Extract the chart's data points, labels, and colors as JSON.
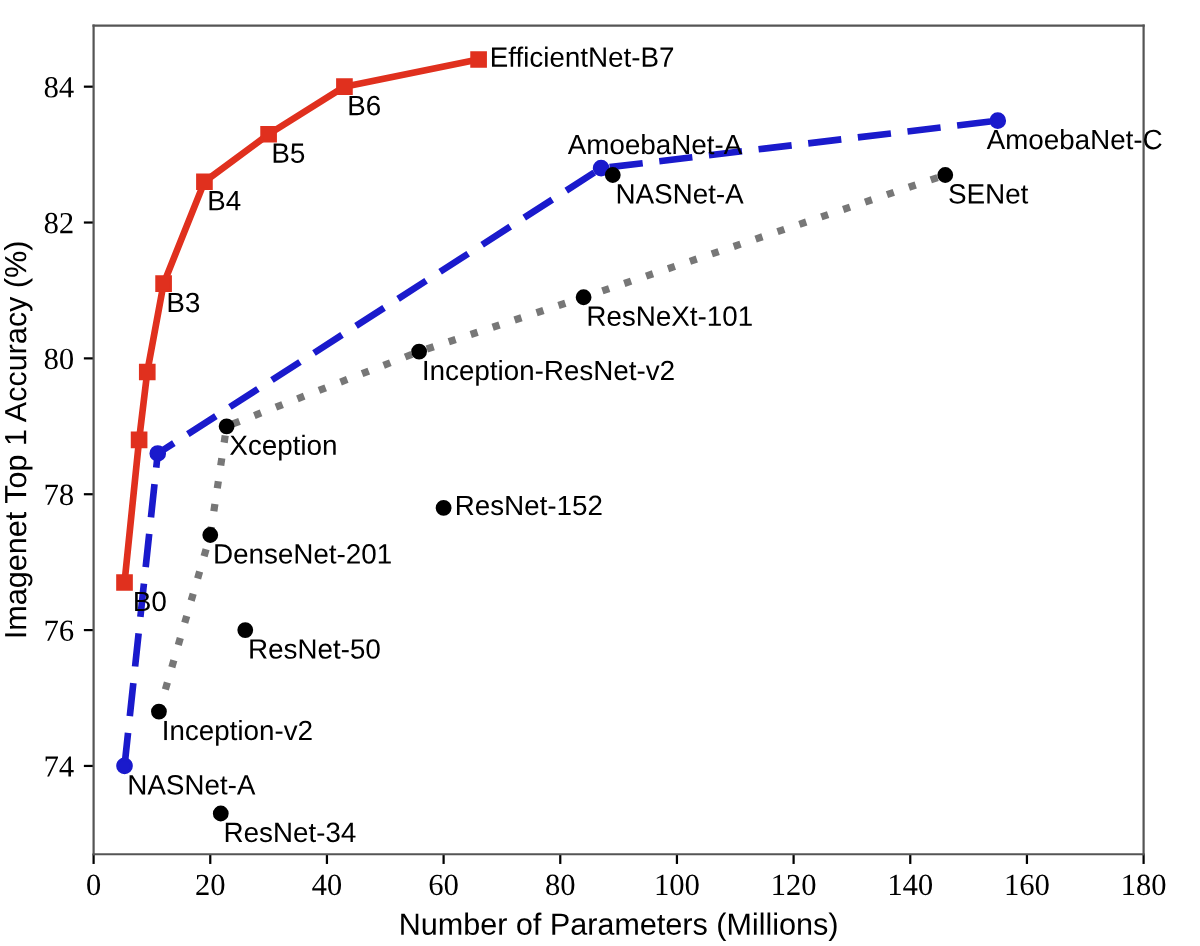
{
  "chart_data": {
    "type": "line",
    "xlabel": "Number of Parameters (Millions)",
    "ylabel": "Imagenet Top 1 Accuracy (%)",
    "xlim": [
      0,
      180
    ],
    "ylim": [
      72.7,
      84.9
    ],
    "xticks": [
      0,
      20,
      40,
      60,
      80,
      100,
      120,
      140,
      160,
      180
    ],
    "yticks": [
      74,
      76,
      78,
      80,
      82,
      84
    ],
    "grid": false,
    "legend": false,
    "series": [
      {
        "color": "#e0301e",
        "marker": "square",
        "line_style": "solid",
        "x": [
          5.3,
          7.8,
          9.2,
          12,
          19,
          30,
          43,
          66
        ],
        "values": [
          76.7,
          78.8,
          79.8,
          81.1,
          82.6,
          83.3,
          84.0,
          84.4
        ]
      },
      {
        "color": "#1a1acc",
        "marker": "circle",
        "line_style": "dashed",
        "x": [
          5.3,
          11,
          87,
          155
        ],
        "values": [
          74.0,
          78.6,
          82.8,
          83.5
        ]
      },
      {
        "color": "#777777",
        "marker": "none",
        "line_style": "dotted",
        "x": [
          11.2,
          20,
          22.8,
          55.8,
          84,
          146
        ],
        "values": [
          74.8,
          77.4,
          79.0,
          80.1,
          80.9,
          82.7
        ]
      },
      {
        "type": "scatter",
        "color": "#000000",
        "marker": "circle",
        "x": [
          11.2,
          20,
          22.8,
          55.8,
          84,
          146,
          60,
          26,
          21.8,
          89
        ],
        "values": [
          74.8,
          77.4,
          79.0,
          80.1,
          80.9,
          82.7,
          77.8,
          76.0,
          73.3,
          82.7
        ]
      }
    ],
    "annotations": [
      {
        "text": "B0",
        "x": 5.3,
        "y": 76.7
      },
      {
        "text": "B3",
        "x": 12,
        "y": 81.1
      },
      {
        "text": "B4",
        "x": 19,
        "y": 82.6
      },
      {
        "text": "B5",
        "x": 30,
        "y": 83.3
      },
      {
        "text": "B6",
        "x": 43,
        "y": 84.0
      },
      {
        "text": "EfficientNet-B7",
        "x": 66,
        "y": 84.4
      },
      {
        "text": "AmoebaNet-A",
        "x": 87,
        "y": 82.8
      },
      {
        "text": "NASNet-A",
        "x": 89,
        "y": 82.7
      },
      {
        "text": "AmoebaNet-C",
        "x": 155,
        "y": 83.5
      },
      {
        "text": "SENet",
        "x": 146,
        "y": 82.7
      },
      {
        "text": "ResNeXt-101",
        "x": 84,
        "y": 80.9
      },
      {
        "text": "Inception-ResNet-v2",
        "x": 55.8,
        "y": 80.1
      },
      {
        "text": "Xception",
        "x": 22.8,
        "y": 79.0
      },
      {
        "text": "ResNet-152",
        "x": 60,
        "y": 77.8
      },
      {
        "text": "DenseNet-201",
        "x": 20,
        "y": 77.4
      },
      {
        "text": "ResNet-50",
        "x": 26,
        "y": 76.0
      },
      {
        "text": "Inception-v2",
        "x": 11.2,
        "y": 74.8
      },
      {
        "text": "NASNet-A",
        "x": 5.3,
        "y": 74.0
      },
      {
        "text": "ResNet-34",
        "x": 21.8,
        "y": 73.3
      }
    ]
  }
}
